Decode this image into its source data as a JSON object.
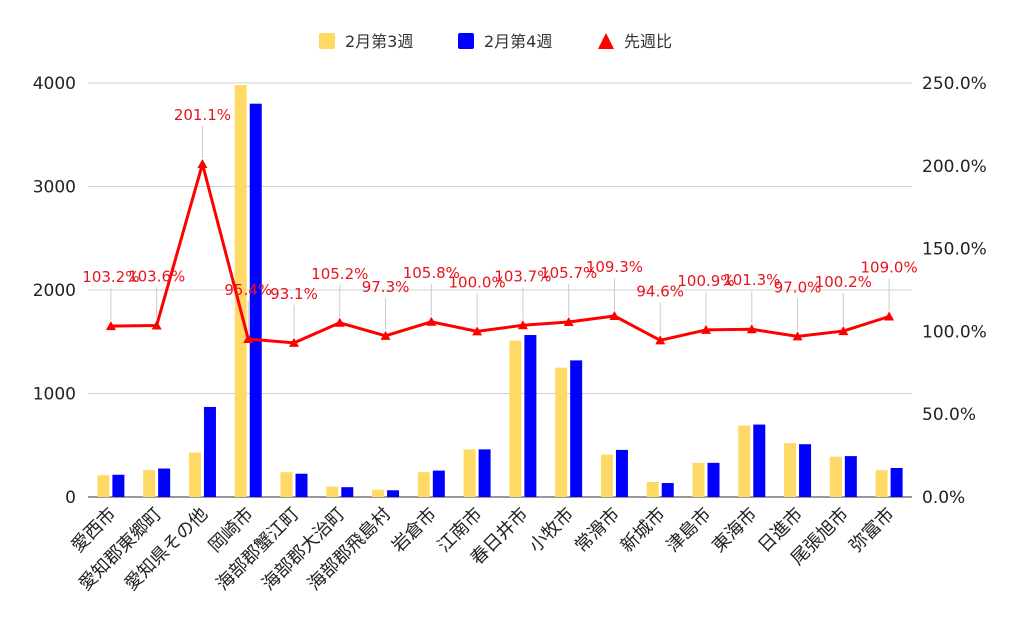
{
  "chart_data": {
    "type": "bar",
    "combo": "bar+line",
    "categories": [
      "愛西市",
      "愛知郡東郷町",
      "愛知県その他",
      "岡崎市",
      "海部郡蟹江町",
      "海部郡大治町",
      "海部郡飛島村",
      "岩倉市",
      "江南市",
      "春日井市",
      "小牧市",
      "常滑市",
      "新城市",
      "津島市",
      "東海市",
      "日進市",
      "尾張旭市",
      "弥富市"
    ],
    "series": [
      {
        "name": "2月第3週",
        "axis": "left",
        "kind": "bar",
        "color": "#ffd966",
        "values": [
          210,
          260,
          430,
          3980,
          240,
          100,
          70,
          240,
          460,
          1510,
          1250,
          410,
          145,
          330,
          690,
          520,
          390,
          260
        ]
      },
      {
        "name": "2月第4週",
        "axis": "left",
        "kind": "bar",
        "color": "#0000ff",
        "values": [
          215,
          275,
          870,
          3800,
          225,
          95,
          65,
          255,
          460,
          1565,
          1320,
          455,
          135,
          330,
          700,
          510,
          395,
          280
        ]
      },
      {
        "name": "先週比",
        "axis": "right",
        "kind": "line",
        "color": "#ff0000",
        "marker": "triangle",
        "values": [
          103.2,
          103.6,
          201.1,
          95.4,
          93.1,
          105.2,
          97.3,
          105.8,
          100.0,
          103.7,
          105.7,
          109.3,
          94.6,
          100.9,
          101.3,
          97.0,
          100.2,
          109.0
        ],
        "labels": [
          "103.2%",
          "103.6%",
          "201.1%",
          "95.4%",
          "93.1%",
          "105.2%",
          "97.3%",
          "105.8%",
          "100.0%",
          "103.7%",
          "105.7%",
          "109.3%",
          "94.6%",
          "100.9%",
          "101.3%",
          "97.0%",
          "100.2%",
          "109.0%"
        ]
      }
    ],
    "y_left": {
      "ylim": [
        0,
        4000
      ],
      "ticks": [
        "0",
        "1000",
        "2000",
        "3000",
        "4000"
      ],
      "tick_values": [
        0,
        1000,
        2000,
        3000,
        4000
      ]
    },
    "y_right": {
      "ylim": [
        0,
        250
      ],
      "ticks": [
        "0.0%",
        "50.0%",
        "100.0%",
        "150.0%",
        "200.0%",
        "250.0%"
      ],
      "tick_values": [
        0,
        50,
        100,
        150,
        200,
        250
      ]
    },
    "title": "",
    "xlabel": "",
    "ylabel": "",
    "grid": true,
    "legend_position": "top-center"
  }
}
